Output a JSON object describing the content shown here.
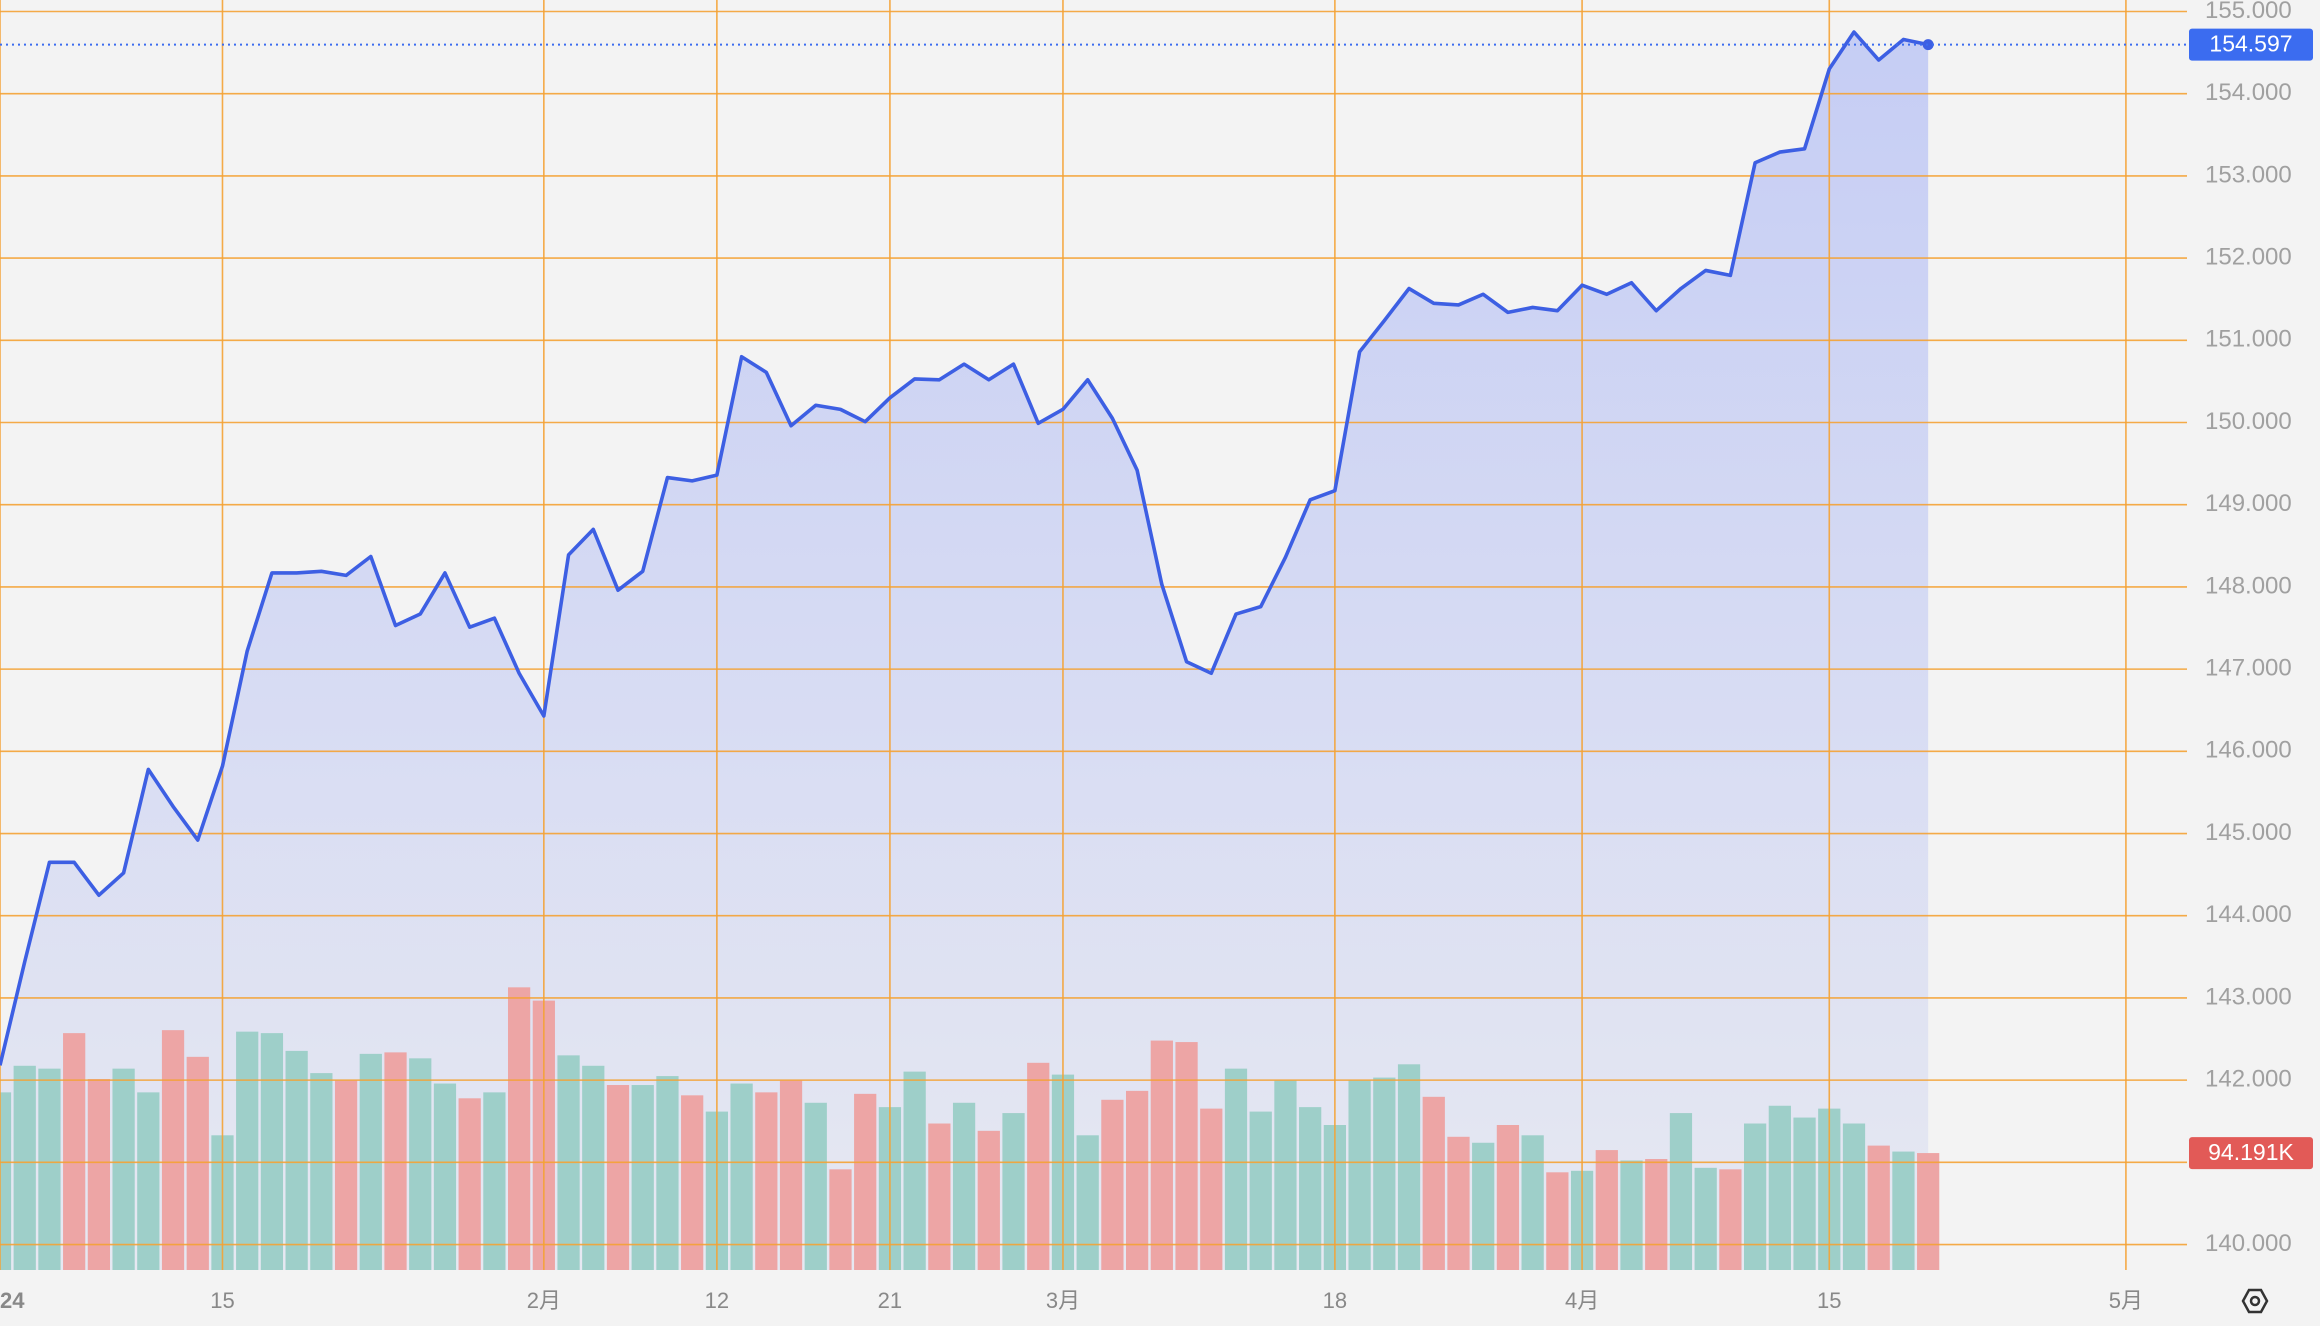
{
  "chart_data": {
    "type": "area",
    "categories": [
      "24",
      null,
      null,
      null,
      null,
      null,
      null,
      null,
      null,
      "15",
      null,
      null,
      null,
      null,
      null,
      null,
      null,
      null,
      null,
      null,
      null,
      null,
      "2月",
      null,
      null,
      null,
      null,
      null,
      null,
      "12",
      null,
      null,
      null,
      null,
      null,
      null,
      "21",
      null,
      null,
      null,
      null,
      null,
      null,
      "3月",
      null,
      null,
      null,
      null,
      null,
      null,
      null,
      null,
      null,
      null,
      "18",
      null,
      null,
      null,
      null,
      null,
      null,
      null,
      null,
      null,
      "4月",
      null,
      null,
      null,
      null,
      null,
      null,
      null,
      null,
      null,
      "15",
      null,
      null,
      null,
      null,
      null,
      null,
      null,
      null,
      null,
      null,
      null,
      "5月"
    ],
    "series": [
      {
        "type": "area",
        "color": "#3d5fe3",
        "values": [
          142.18,
          143.44,
          144.65,
          144.65,
          144.25,
          144.52,
          145.78,
          145.33,
          144.92,
          145.82,
          147.22,
          148.17,
          148.17,
          148.19,
          148.14,
          148.37,
          147.53,
          147.67,
          148.17,
          147.51,
          147.62,
          146.95,
          146.43,
          148.39,
          148.7,
          147.96,
          148.19,
          149.33,
          149.29,
          149.36,
          150.8,
          150.61,
          149.96,
          150.21,
          150.16,
          150.01,
          150.3,
          150.53,
          150.52,
          150.71,
          150.52,
          150.71,
          149.99,
          150.16,
          150.52,
          150.05,
          149.42,
          148.03,
          147.09,
          146.95,
          147.67,
          147.76,
          148.36,
          149.06,
          149.17,
          150.86,
          151.24,
          151.63,
          151.45,
          151.43,
          151.56,
          151.34,
          151.4,
          151.36,
          151.67,
          151.56,
          151.7,
          151.36,
          151.63,
          151.85,
          151.79,
          153.16,
          153.29,
          153.33,
          154.3,
          154.75,
          154.41,
          154.66,
          154.597,
          null,
          null,
          null,
          null,
          null,
          null,
          null,
          null
        ]
      },
      {
        "type": "bar",
        "axis": "y2",
        "colors": [
          "#9ecfc9",
          "#9ecfc9",
          "#9ecfc9",
          "#eda5a5",
          "#eda5a5",
          "#9ecfc9",
          "#9ecfc9",
          "#eda5a5",
          "#eda5a5",
          "#9ecfc9",
          "#9ecfc9",
          "#9ecfc9",
          "#9ecfc9",
          "#9ecfc9",
          "#eda5a5",
          "#9ecfc9",
          "#eda5a5",
          "#9ecfc9",
          "#9ecfc9",
          "#eda5a5",
          "#9ecfc9",
          "#eda5a5",
          "#eda5a5",
          "#9ecfc9",
          "#9ecfc9",
          "#eda5a5",
          "#9ecfc9",
          "#9ecfc9",
          "#eda5a5",
          "#9ecfc9",
          "#9ecfc9",
          "#eda5a5",
          "#eda5a5",
          "#9ecfc9",
          "#eda5a5",
          "#eda5a5",
          "#9ecfc9",
          "#9ecfc9",
          "#eda5a5",
          "#9ecfc9",
          "#eda5a5",
          "#9ecfc9",
          "#eda5a5",
          "#9ecfc9",
          "#9ecfc9",
          "#eda5a5",
          "#eda5a5",
          "#eda5a5",
          "#eda5a5",
          "#eda5a5",
          "#9ecfc9",
          "#9ecfc9",
          "#9ecfc9",
          "#9ecfc9",
          "#9ecfc9",
          "#9ecfc9",
          "#9ecfc9",
          "#9ecfc9",
          "#eda5a5",
          "#eda5a5",
          "#9ecfc9",
          "#eda5a5",
          "#9ecfc9",
          "#eda5a5",
          "#9ecfc9",
          "#eda5a5",
          "#9ecfc9",
          "#eda5a5",
          "#9ecfc9",
          "#9ecfc9",
          "#eda5a5",
          "#9ecfc9",
          "#9ecfc9",
          "#9ecfc9",
          "#9ecfc9",
          "#9ecfc9",
          "#eda5a5",
          "#9ecfc9",
          "#eda5a5",
          null,
          null,
          null,
          null,
          null,
          null,
          null,
          null
        ],
        "values": [
          143.1,
          164.5,
          162.2,
          190.8,
          153.8,
          162.2,
          143.1,
          193.2,
          171.7,
          108.5,
          192.0,
          190.8,
          176.5,
          158.6,
          152.6,
          174.1,
          175.3,
          170.5,
          150.2,
          138.3,
          143.1,
          227.7,
          217.0,
          172.9,
          164.5,
          149.0,
          149.0,
          156.2,
          140.7,
          127.6,
          150.2,
          143.1,
          152.6,
          134.7,
          81.1,
          141.9,
          131.2,
          159.8,
          118.0,
          134.7,
          112.1,
          126.4,
          166.9,
          157.4,
          108.5,
          137.1,
          144.3,
          184.8,
          183.6,
          130.0,
          162.2,
          127.6,
          152.6,
          131.2,
          116.8,
          152.6,
          155.0,
          165.7,
          139.5,
          107.3,
          102.5,
          116.8,
          108.5,
          78.7,
          79.9,
          96.6,
          88.2,
          89.4,
          126.4,
          82.3,
          81.1,
          118.0,
          132.3,
          122.8,
          130.0,
          118.0,
          100.2,
          95.4,
          94.191,
          null,
          null,
          null,
          null,
          null,
          null,
          null,
          null
        ]
      }
    ],
    "ylim": [
      139.69,
      155.14
    ],
    "yticks": [
      {
        "value": 140,
        "label": "140.000"
      },
      {
        "value": 141,
        "label": "141.000"
      },
      {
        "value": 142,
        "label": "142.000"
      },
      {
        "value": 143,
        "label": "143.000"
      },
      {
        "value": 144,
        "label": "144.000"
      },
      {
        "value": 145,
        "label": "145.000"
      },
      {
        "value": 146,
        "label": "146.000"
      },
      {
        "value": 147,
        "label": "147.000"
      },
      {
        "value": 148,
        "label": "148.000"
      },
      {
        "value": 149,
        "label": "149.000"
      },
      {
        "value": 150,
        "label": "150.000"
      },
      {
        "value": 151,
        "label": "151.000"
      },
      {
        "value": 152,
        "label": "152.000"
      },
      {
        "value": 153,
        "label": "153.000"
      },
      {
        "value": 154,
        "label": "154.000"
      },
      {
        "value": 155,
        "label": "155.000"
      }
    ],
    "y2lim": [
      0,
      1023
    ],
    "grid": true,
    "grid_color": "#f4a234",
    "markers": [
      {
        "value": 154.597,
        "label": "154.597",
        "color": "#3b6cf0"
      },
      {
        "value": 94.191,
        "label": "94.191K",
        "color": "#e25a57",
        "axis": "y2"
      }
    ]
  }
}
